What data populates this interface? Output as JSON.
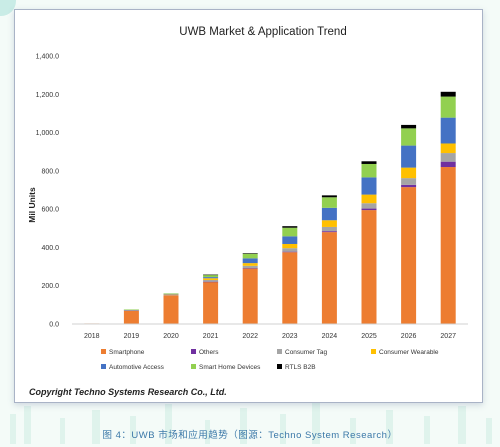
{
  "chart_data": {
    "type": "bar",
    "stacked": true,
    "title": "UWB Market & Application Trend",
    "ylabel": "Mil Units",
    "xlabel": "",
    "ylim": [
      0,
      1400
    ],
    "yticks": [
      "0.0",
      "200.0",
      "400.0",
      "600.0",
      "800.0",
      "1,000.0",
      "1,200.0",
      "1,400.0"
    ],
    "ytick_values": [
      0,
      200,
      400,
      600,
      800,
      1000,
      1200,
      1400
    ],
    "grid": false,
    "legend_position": "bottom",
    "categories": [
      "2018",
      "2019",
      "2020",
      "2021",
      "2022",
      "2023",
      "2024",
      "2025",
      "2026",
      "2027"
    ],
    "series": [
      {
        "name": "Smartphone",
        "color": "#ed7d31",
        "values": [
          3,
          70,
          150,
          220,
          290,
          375,
          480,
          595,
          715,
          820
        ]
      },
      {
        "name": "Others",
        "color": "#7030a0",
        "values": [
          0,
          0,
          0,
          1,
          2,
          3,
          5,
          8,
          12,
          28
        ]
      },
      {
        "name": "Consumer Tag",
        "color": "#a5a5a5",
        "values": [
          0,
          2,
          4,
          9,
          12,
          18,
          22,
          28,
          35,
          45
        ]
      },
      {
        "name": "Consumer Wearable",
        "color": "#ffc000",
        "values": [
          0,
          0,
          2,
          9,
          14,
          22,
          35,
          45,
          55,
          50
        ]
      },
      {
        "name": "Automotive Access",
        "color": "#4472c4",
        "values": [
          0,
          2,
          2,
          6,
          25,
          40,
          65,
          90,
          115,
          135
        ]
      },
      {
        "name": "Smart Home Devices",
        "color": "#92d050",
        "values": [
          0,
          2,
          2,
          12,
          24,
          45,
          55,
          70,
          90,
          110
        ]
      },
      {
        "name": "RTLS B2B",
        "color": "#000000",
        "values": [
          0,
          0,
          0,
          1,
          3,
          8,
          10,
          14,
          18,
          25
        ]
      }
    ]
  },
  "copyright": "Copyright Techno Systems Research Co., Ltd.",
  "caption": "图 4：UWB 市场和应用趋势（图源：Techno System Research）"
}
